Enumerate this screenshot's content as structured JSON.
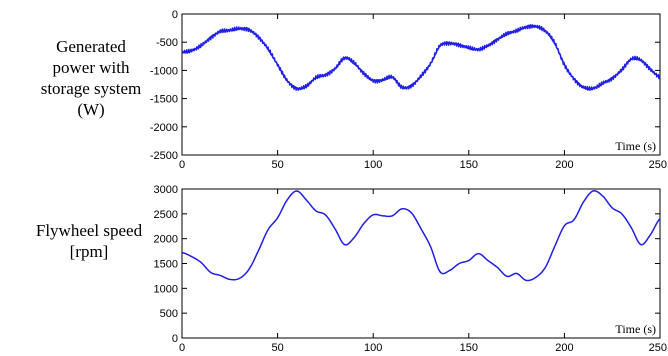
{
  "chart_data": [
    {
      "type": "line",
      "ylabel": "Generated power with storage system (W)",
      "ylabel_lines": [
        "Generated",
        "power with",
        "storage system",
        "(W)"
      ],
      "xunit_label": "Time (s)",
      "xlim": [
        0,
        250
      ],
      "ylim": [
        -2500,
        0
      ],
      "xticks": [
        0,
        50,
        100,
        150,
        200,
        250
      ],
      "yticks": [
        0,
        -500,
        -1000,
        -1500,
        -2000,
        -2500
      ],
      "line_color": "#1f1fe6",
      "noisy": true,
      "series": [
        {
          "x": [
            0,
            5,
            10,
            15,
            20,
            25,
            30,
            35,
            40,
            45,
            50,
            55,
            60,
            65,
            70,
            75,
            80,
            85,
            90,
            95,
            100,
            105,
            110,
            115,
            120,
            125,
            130,
            135,
            140,
            145,
            150,
            155,
            160,
            165,
            170,
            175,
            180,
            185,
            190,
            195,
            200,
            205,
            210,
            215,
            220,
            225,
            230,
            235,
            240,
            245,
            250
          ],
          "values": [
            -680,
            -650,
            -560,
            -420,
            -310,
            -290,
            -260,
            -280,
            -410,
            -620,
            -900,
            -1180,
            -1320,
            -1280,
            -1130,
            -1080,
            -970,
            -780,
            -870,
            -1050,
            -1180,
            -1170,
            -1120,
            -1300,
            -1270,
            -1100,
            -880,
            -560,
            -520,
            -550,
            -600,
            -630,
            -560,
            -450,
            -350,
            -300,
            -230,
            -220,
            -300,
            -520,
            -900,
            -1150,
            -1300,
            -1320,
            -1230,
            -1140,
            -990,
            -800,
            -820,
            -980,
            -1120
          ]
        }
      ]
    },
    {
      "type": "line",
      "ylabel": "Flywheel speed [rpm]",
      "ylabel_lines": [
        "Flywheel speed",
        "[rpm]"
      ],
      "xunit_label": "Time (s)",
      "xlim": [
        0,
        250
      ],
      "ylim": [
        0,
        3000
      ],
      "xticks": [
        0,
        50,
        100,
        150,
        200,
        250
      ],
      "yticks": [
        0,
        500,
        1000,
        1500,
        2000,
        2500,
        3000
      ],
      "line_color": "#1f1fe6",
      "noisy": false,
      "series": [
        {
          "x": [
            0,
            5,
            10,
            15,
            20,
            25,
            30,
            35,
            40,
            45,
            50,
            55,
            60,
            65,
            70,
            75,
            80,
            85,
            90,
            95,
            100,
            105,
            110,
            115,
            120,
            125,
            130,
            135,
            140,
            145,
            150,
            155,
            160,
            165,
            170,
            175,
            180,
            185,
            190,
            195,
            200,
            205,
            210,
            215,
            220,
            225,
            230,
            235,
            240,
            245,
            250
          ],
          "values": [
            1720,
            1640,
            1520,
            1320,
            1260,
            1180,
            1200,
            1380,
            1760,
            2180,
            2420,
            2780,
            2960,
            2780,
            2560,
            2480,
            2200,
            1880,
            2020,
            2300,
            2480,
            2460,
            2460,
            2600,
            2520,
            2200,
            1840,
            1330,
            1360,
            1500,
            1560,
            1700,
            1560,
            1420,
            1240,
            1300,
            1160,
            1220,
            1420,
            1850,
            2260,
            2380,
            2740,
            2960,
            2860,
            2620,
            2500,
            2220,
            1880,
            2080,
            2400
          ]
        }
      ]
    }
  ]
}
